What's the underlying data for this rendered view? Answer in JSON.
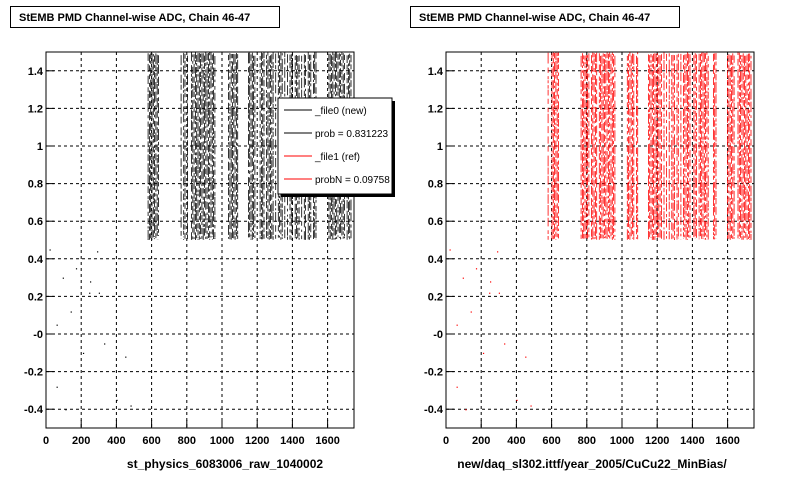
{
  "chart_data": [
    {
      "type": "scatter",
      "title": "StEMB PMD Channel-wise ADC, Chain 46-47",
      "xlabel": "st_physics_6083006_raw_1040002",
      "ylabel": "",
      "xlim": [
        0,
        1750
      ],
      "ylim": [
        -0.5,
        1.5
      ],
      "xticks": [
        0,
        200,
        400,
        600,
        800,
        1000,
        1200,
        1400,
        1600
      ],
      "yticks": [
        -0.4,
        -0.2,
        0,
        0.2,
        0.4,
        0.6,
        0.8,
        1,
        1.2,
        1.4
      ],
      "ytick_labels": [
        "-0.4",
        "-0.2",
        "-0",
        "0.2",
        "0.4",
        "0.6",
        "0.8",
        "1",
        "1.2",
        "1.4"
      ],
      "grid": true,
      "dense_bands_x": [
        [
          580,
          640
        ],
        [
          760,
          960
        ],
        [
          1030,
          1090
        ],
        [
          1150,
          1540
        ],
        [
          1600,
          1740
        ]
      ],
      "dense_band_y": [
        0.5,
        1.5
      ],
      "series": [
        {
          "name": "_file0 (new)",
          "color": "#000000"
        }
      ],
      "legend": {
        "placement": "top-right",
        "entries": [
          {
            "label": "_file0 (new)",
            "color": "#000000"
          },
          {
            "label": "prob = 0.831223",
            "color": "#000000"
          },
          {
            "label": "_file1 (ref)",
            "color": "#ff0000"
          },
          {
            "label": "probN = 0.09758",
            "color": "#ff0000"
          }
        ]
      }
    },
    {
      "type": "scatter",
      "title": "StEMB PMD Channel-wise ADC, Chain 46-47",
      "xlabel": "new/daq_sl302.ittf/year_2005/CuCu22_MinBias/",
      "ylabel": "",
      "xlim": [
        0,
        1750
      ],
      "ylim": [
        -0.5,
        1.5
      ],
      "xticks": [
        0,
        200,
        400,
        600,
        800,
        1000,
        1200,
        1400,
        1600
      ],
      "yticks": [
        -0.4,
        -0.2,
        0,
        0.2,
        0.4,
        0.6,
        0.8,
        1,
        1.2,
        1.4
      ],
      "ytick_labels": [
        "-0.4",
        "-0.2",
        "-0",
        "0.2",
        "0.4",
        "0.6",
        "0.8",
        "1",
        "1.2",
        "1.4"
      ],
      "grid": true,
      "dense_bands_x": [
        [
          580,
          640
        ],
        [
          760,
          960
        ],
        [
          1030,
          1090
        ],
        [
          1150,
          1540
        ],
        [
          1600,
          1740
        ]
      ],
      "dense_band_y": [
        0.5,
        1.5
      ],
      "series": [
        {
          "name": "_file1 (ref)",
          "color": "#ff0000"
        }
      ]
    }
  ]
}
